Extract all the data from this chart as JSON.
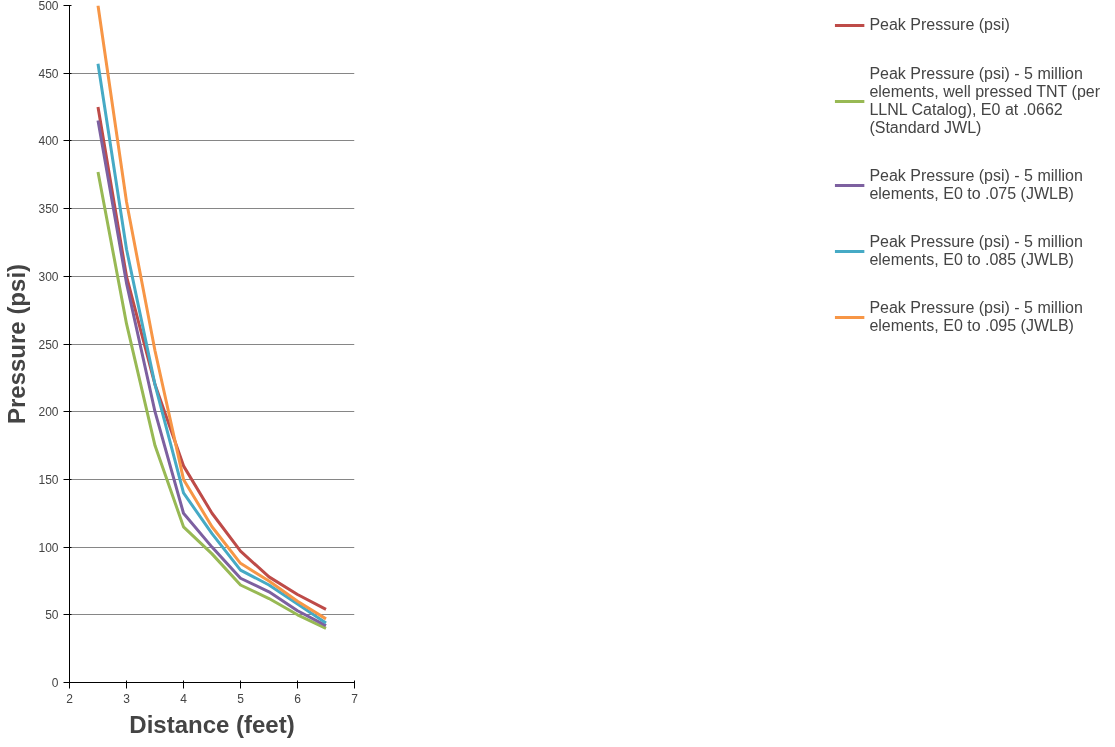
{
  "chart_data": {
    "type": "line",
    "xlabel": "Distance (feet)",
    "ylabel": "Pressure (psi)",
    "xlim": [
      2,
      7
    ],
    "xticks": [
      2,
      3,
      4,
      5,
      6,
      7
    ],
    "ylim": [
      0,
      500
    ],
    "yticks": [
      0,
      50,
      100,
      150,
      200,
      250,
      300,
      350,
      400,
      450,
      500
    ],
    "grid": "y",
    "legend": "right",
    "marker": "none",
    "line_style": "solid",
    "x": [
      2.5,
      3,
      3.5,
      4,
      4.5,
      5,
      5.5,
      6,
      6.5
    ],
    "series": [
      {
        "name": "Peak Pressure (psi)",
        "color": "#be4b48",
        "values": [
          425,
          300,
          220,
          160,
          125,
          97,
          78,
          65,
          54
        ]
      },
      {
        "name": "Peak Pressure (psi) - 5 million elements, well pressed TNT (per LLNL Catalog), E0 at .0662 (Standard JWL)",
        "color": "#98b954",
        "values": [
          377,
          265,
          175,
          115,
          95,
          72,
          62,
          50,
          40
        ]
      },
      {
        "name": "Peak Pressure (psi) - 5 million elements, E0 to .075 (JWLB)",
        "color": "#7d60a0",
        "values": [
          415,
          295,
          200,
          125,
          100,
          77,
          67,
          53,
          42
        ]
      },
      {
        "name": "Peak Pressure (psi) - 5 million elements, E0 to .085 (JWLB)",
        "color": "#46aac5",
        "values": [
          457,
          320,
          220,
          140,
          110,
          83,
          72,
          58,
          44
        ]
      },
      {
        "name": "Peak Pressure (psi) - 5 million elements, E0 to .095 (JWLB)",
        "color": "#f79646",
        "values": [
          500,
          355,
          245,
          150,
          115,
          88,
          75,
          60,
          47
        ]
      }
    ]
  }
}
